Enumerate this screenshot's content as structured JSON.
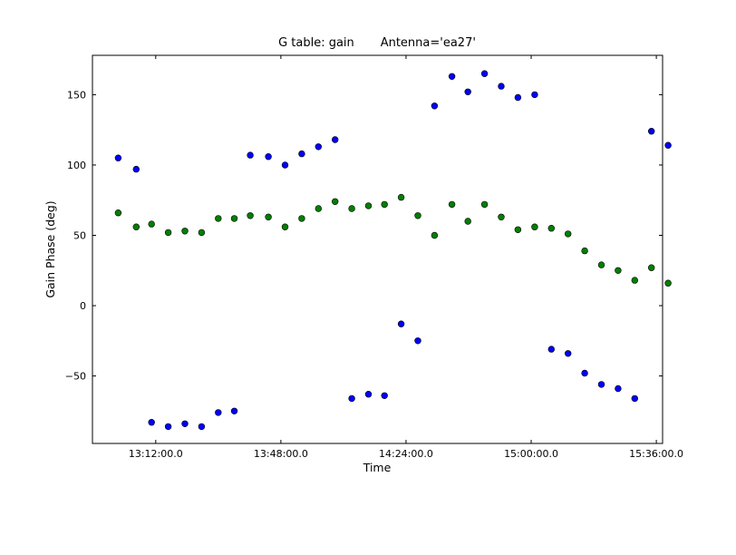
{
  "chart_data": {
    "type": "scatter",
    "title": "G table: gain       Antenna='ea27'",
    "xlabel": "Time",
    "ylabel": "Gain Phase (deg)",
    "xlim": [
      "12:53:48",
      "15:37:48"
    ],
    "ylim": [
      -98,
      178
    ],
    "xticks": [
      "13:12:00.0",
      "13:48:00.0",
      "14:24:00.0",
      "15:00:00.0",
      "15:36:00.0"
    ],
    "yticks": [
      "150",
      "100",
      "50",
      "0",
      "−50"
    ],
    "grid": false,
    "legend": "none",
    "series": [
      {
        "color": "#0000ff",
        "points": [
          [
            "13:01:12",
            105
          ],
          [
            "13:06:24",
            97
          ],
          [
            "13:10:48",
            -83
          ],
          [
            "13:15:36",
            -86
          ],
          [
            "13:20:24",
            -84
          ],
          [
            "13:25:12",
            -86
          ],
          [
            "13:30:00",
            -76
          ],
          [
            "13:34:36",
            -75
          ],
          [
            "13:39:12",
            107
          ],
          [
            "13:44:24",
            106
          ],
          [
            "13:49:12",
            100
          ],
          [
            "13:54:00",
            108
          ],
          [
            "13:58:48",
            113
          ],
          [
            "14:03:36",
            118
          ],
          [
            "14:08:24",
            -66
          ],
          [
            "14:13:12",
            -63
          ],
          [
            "14:17:48",
            -64
          ],
          [
            "14:22:36",
            -13
          ],
          [
            "14:27:24",
            -25
          ],
          [
            "14:32:12",
            142
          ],
          [
            "14:37:12",
            163
          ],
          [
            "14:41:48",
            152
          ],
          [
            "14:46:36",
            165
          ],
          [
            "14:51:24",
            156
          ],
          [
            "14:56:12",
            148
          ],
          [
            "15:01:00",
            150
          ],
          [
            "15:05:48",
            -31
          ],
          [
            "15:10:36",
            -34
          ],
          [
            "15:15:24",
            -48
          ],
          [
            "15:20:12",
            -56
          ],
          [
            "15:25:00",
            -59
          ],
          [
            "15:29:48",
            -66
          ],
          [
            "15:34:36",
            124
          ],
          [
            "15:39:24",
            114
          ]
        ]
      },
      {
        "color": "#008000",
        "points": [
          [
            "13:01:12",
            66
          ],
          [
            "13:06:24",
            56
          ],
          [
            "13:10:48",
            58
          ],
          [
            "13:15:36",
            52
          ],
          [
            "13:20:24",
            53
          ],
          [
            "13:25:12",
            52
          ],
          [
            "13:30:00",
            62
          ],
          [
            "13:34:36",
            62
          ],
          [
            "13:39:12",
            64
          ],
          [
            "13:44:24",
            63
          ],
          [
            "13:49:12",
            56
          ],
          [
            "13:54:00",
            62
          ],
          [
            "13:58:48",
            69
          ],
          [
            "14:03:36",
            74
          ],
          [
            "14:08:24",
            69
          ],
          [
            "14:13:12",
            71
          ],
          [
            "14:17:48",
            72
          ],
          [
            "14:22:36",
            77
          ],
          [
            "14:27:24",
            64
          ],
          [
            "14:32:12",
            50
          ],
          [
            "14:37:12",
            72
          ],
          [
            "14:41:48",
            60
          ],
          [
            "14:46:36",
            72
          ],
          [
            "14:51:24",
            63
          ],
          [
            "14:56:12",
            54
          ],
          [
            "15:01:00",
            56
          ],
          [
            "15:05:48",
            55
          ],
          [
            "15:10:36",
            51
          ],
          [
            "15:15:24",
            39
          ],
          [
            "15:20:12",
            29
          ],
          [
            "15:25:00",
            25
          ],
          [
            "15:29:48",
            18
          ],
          [
            "15:34:36",
            27
          ],
          [
            "15:39:24",
            16
          ]
        ]
      }
    ]
  }
}
